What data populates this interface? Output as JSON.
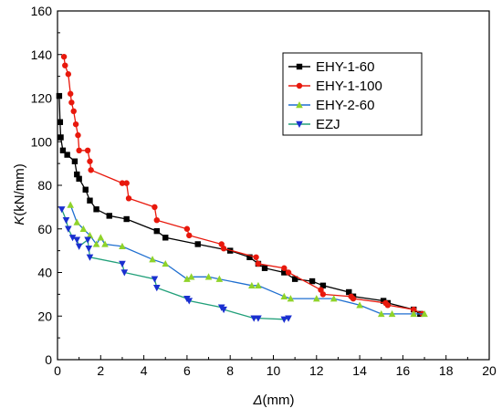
{
  "chart_data": {
    "type": "line",
    "xlabel_symbol": "Δ",
    "xlabel_unit": "(mm)",
    "ylabel_symbol": "K",
    "ylabel_unit": "(kN/mm)",
    "xlim": [
      0,
      20
    ],
    "ylim": [
      0,
      160
    ],
    "xticks": [
      0,
      2,
      4,
      6,
      8,
      10,
      12,
      14,
      16,
      18,
      20
    ],
    "yticks": [
      0,
      20,
      40,
      60,
      80,
      100,
      120,
      140,
      160
    ],
    "grid": false,
    "legend_position": "top-right",
    "series": [
      {
        "name": "EHY-1-60",
        "color": "#000000",
        "marker": "square",
        "points": [
          [
            0.08,
            121
          ],
          [
            0.12,
            109
          ],
          [
            0.15,
            102
          ],
          [
            0.25,
            96
          ],
          [
            0.45,
            94
          ],
          [
            0.8,
            91
          ],
          [
            0.9,
            85
          ],
          [
            1.0,
            83
          ],
          [
            1.3,
            78
          ],
          [
            1.5,
            73
          ],
          [
            1.8,
            69
          ],
          [
            2.4,
            66
          ],
          [
            3.2,
            64.5
          ],
          [
            4.6,
            59
          ],
          [
            5.0,
            56
          ],
          [
            6.5,
            53
          ],
          [
            8.0,
            50
          ],
          [
            8.9,
            47
          ],
          [
            9.3,
            44
          ],
          [
            9.6,
            42
          ],
          [
            10.5,
            40
          ],
          [
            11.0,
            37
          ],
          [
            11.8,
            36
          ],
          [
            12.3,
            34
          ],
          [
            13.5,
            31
          ],
          [
            13.7,
            29
          ],
          [
            15.1,
            27
          ],
          [
            15.3,
            26
          ],
          [
            16.5,
            23
          ],
          [
            16.8,
            21
          ]
        ]
      },
      {
        "name": "EHY-1-100",
        "color": "#e8180c",
        "marker": "circle",
        "points": [
          [
            0.3,
            139
          ],
          [
            0.35,
            135
          ],
          [
            0.5,
            131
          ],
          [
            0.6,
            122
          ],
          [
            0.65,
            118
          ],
          [
            0.75,
            114
          ],
          [
            0.85,
            108
          ],
          [
            0.95,
            103
          ],
          [
            1.0,
            96
          ],
          [
            1.4,
            96
          ],
          [
            1.5,
            91
          ],
          [
            1.55,
            87
          ],
          [
            3.0,
            81
          ],
          [
            3.2,
            81
          ],
          [
            3.3,
            74
          ],
          [
            4.5,
            70
          ],
          [
            4.6,
            64
          ],
          [
            6.0,
            60
          ],
          [
            6.1,
            57
          ],
          [
            7.6,
            53
          ],
          [
            7.7,
            51
          ],
          [
            9.2,
            47
          ],
          [
            9.3,
            44
          ],
          [
            10.5,
            42
          ],
          [
            10.7,
            40
          ],
          [
            12.2,
            32
          ],
          [
            12.3,
            30
          ],
          [
            13.6,
            29
          ],
          [
            13.7,
            28
          ],
          [
            15.2,
            26
          ],
          [
            15.3,
            25
          ],
          [
            16.5,
            23
          ],
          [
            16.9,
            21
          ]
        ]
      },
      {
        "name": "EHY-2-60",
        "color": "#1f6fd0",
        "marker": "triangle-up",
        "marker_color": "#8fd32a",
        "points": [
          [
            0.6,
            71
          ],
          [
            0.9,
            63
          ],
          [
            1.2,
            60
          ],
          [
            1.5,
            57
          ],
          [
            1.8,
            53
          ],
          [
            2.0,
            56
          ],
          [
            2.2,
            53
          ],
          [
            3.0,
            52
          ],
          [
            4.4,
            46
          ],
          [
            5.0,
            44
          ],
          [
            6.0,
            37
          ],
          [
            6.2,
            38
          ],
          [
            7.0,
            38
          ],
          [
            7.5,
            37
          ],
          [
            9.0,
            34
          ],
          [
            9.3,
            34
          ],
          [
            10.5,
            29
          ],
          [
            10.8,
            28
          ],
          [
            12.0,
            28
          ],
          [
            12.8,
            28
          ],
          [
            14.0,
            25
          ],
          [
            15.0,
            21
          ],
          [
            15.5,
            21
          ],
          [
            16.5,
            21
          ],
          [
            17.0,
            21
          ]
        ]
      },
      {
        "name": "EZJ",
        "color": "#22a07a",
        "marker": "triangle-down",
        "marker_color": "#1a2fd0",
        "points": [
          [
            0.2,
            69
          ],
          [
            0.4,
            64
          ],
          [
            0.5,
            60
          ],
          [
            0.7,
            56
          ],
          [
            0.9,
            55
          ],
          [
            1.0,
            52
          ],
          [
            1.4,
            55
          ],
          [
            1.45,
            51
          ],
          [
            1.5,
            47
          ],
          [
            3.0,
            44
          ],
          [
            3.1,
            40
          ],
          [
            4.5,
            37
          ],
          [
            4.6,
            33
          ],
          [
            6.0,
            28
          ],
          [
            6.1,
            27
          ],
          [
            7.6,
            24
          ],
          [
            7.7,
            23
          ],
          [
            9.1,
            19
          ],
          [
            9.3,
            19
          ],
          [
            10.5,
            18.5
          ],
          [
            10.7,
            19
          ]
        ]
      }
    ]
  }
}
